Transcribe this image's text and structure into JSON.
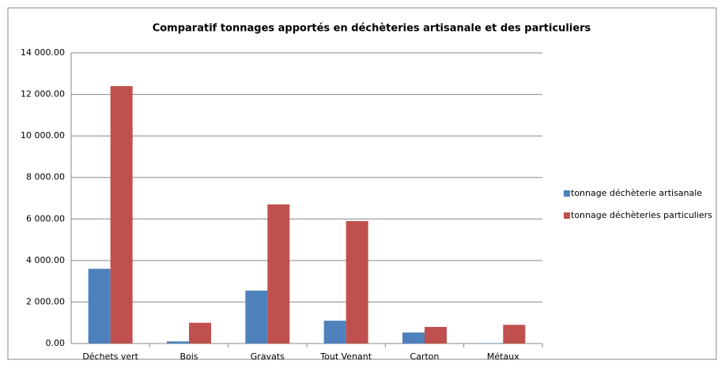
{
  "chart_data": {
    "type": "bar",
    "title": "Comparatif tonnages apportés en déchèteries artisanale et des particuliers",
    "categories": [
      "Déchets vert",
      "Bois",
      "Gravats",
      "Tout Venant",
      "Carton",
      "Métaux"
    ],
    "series": [
      {
        "name": "tonnage déchèterie artisanale",
        "color": "#4f81bd",
        "values": [
          3600,
          100,
          2550,
          1100,
          530,
          20
        ]
      },
      {
        "name": "tonnage déchèteries particuliers",
        "color": "#c0504d",
        "values": [
          12400,
          1000,
          6700,
          5900,
          800,
          900
        ]
      }
    ],
    "ylim": [
      0,
      14000
    ],
    "yticks": [
      {
        "value": 0,
        "label": "0.00"
      },
      {
        "value": 2000,
        "label": "2 000.00"
      },
      {
        "value": 4000,
        "label": "4 000.00"
      },
      {
        "value": 6000,
        "label": "6 000.00"
      },
      {
        "value": 8000,
        "label": "8 000.00"
      },
      {
        "value": 10000,
        "label": "10 000.00"
      },
      {
        "value": 12000,
        "label": "12 000.00"
      },
      {
        "value": 14000,
        "label": "14 000.00"
      }
    ],
    "grid": true,
    "legend": "right"
  }
}
